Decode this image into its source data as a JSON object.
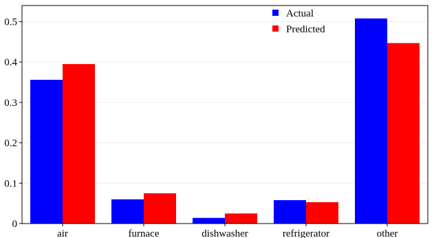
{
  "chart_data": {
    "type": "bar",
    "categories": [
      "air",
      "furnace",
      "dishwasher",
      "refrigerator",
      "other"
    ],
    "series": [
      {
        "name": "Actual",
        "color": "#0000ff",
        "values": [
          0.356,
          0.06,
          0.014,
          0.058,
          0.508
        ]
      },
      {
        "name": "Predicted",
        "color": "#ff0000",
        "values": [
          0.395,
          0.075,
          0.025,
          0.053,
          0.447
        ]
      }
    ],
    "title": "",
    "xlabel": "",
    "ylabel": "",
    "ylim": [
      0,
      0.54
    ],
    "yticks": [
      "0",
      "0.1",
      "0.2",
      "0.3",
      "0.4",
      "0.5"
    ],
    "ytick_values": [
      0,
      0.1,
      0.2,
      0.3,
      0.4,
      0.5
    ],
    "grid": true,
    "legend_position": "top-right"
  }
}
